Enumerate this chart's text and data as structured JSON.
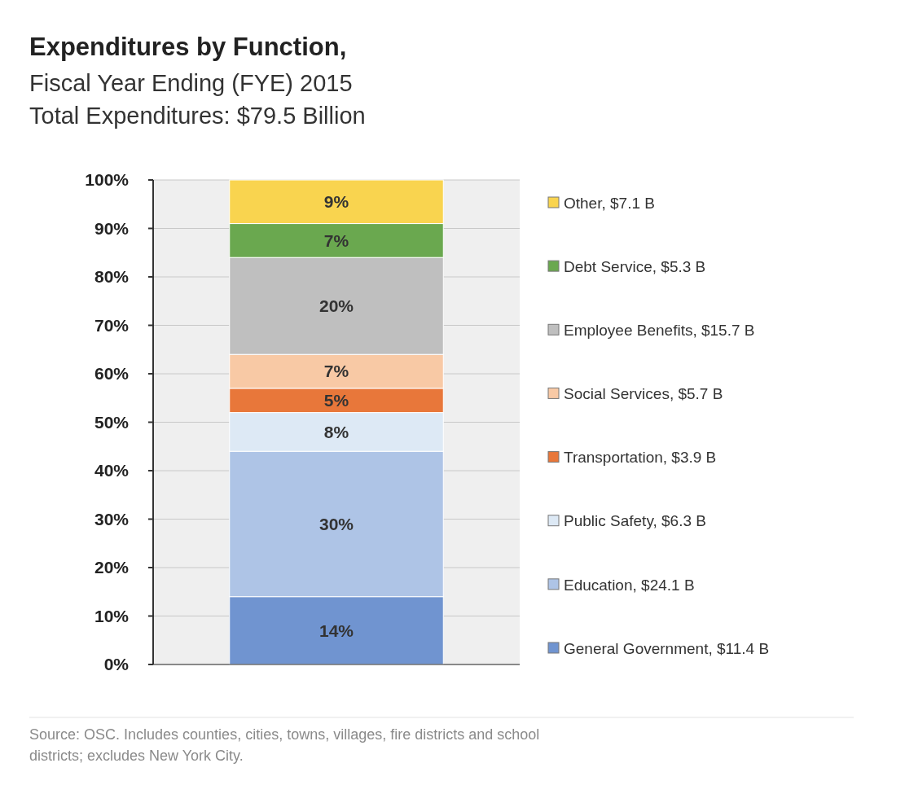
{
  "chart_data": {
    "type": "bar",
    "stacked": true,
    "title": "Expenditures by Function,",
    "subtitle": "Fiscal Year Ending (FYE) 2015\nTotal Expenditures: $79.5 Billion",
    "categories": [
      null
    ],
    "series": [
      {
        "name": "General Government, $11.4 B",
        "color": "#7094d0",
        "values": [
          14
        ],
        "value_labels": [
          "14%"
        ]
      },
      {
        "name": "Education, $24.1 B",
        "color": "#aec4e6",
        "values": [
          30
        ],
        "value_labels": [
          "30%"
        ]
      },
      {
        "name": "Public Safety, $6.3 B",
        "color": "#dde9f5",
        "values": [
          8
        ],
        "value_labels": [
          "8%"
        ]
      },
      {
        "name": "Transportation, $3.9 B",
        "color": "#e8773a",
        "values": [
          5
        ],
        "value_labels": [
          "5%"
        ]
      },
      {
        "name": "Social Services, $5.7 B",
        "color": "#f8c9a5",
        "values": [
          7
        ],
        "value_labels": [
          "7%"
        ]
      },
      {
        "name": "Employee Benefits, $15.7 B",
        "color": "#bfbfbf",
        "values": [
          20
        ],
        "value_labels": [
          "20%"
        ]
      },
      {
        "name": "Debt Service, $5.3 B",
        "color": "#6aa84f",
        "values": [
          7
        ],
        "value_labels": [
          "7%"
        ]
      },
      {
        "name": "Other, $7.1 B",
        "color": "#f9d44f",
        "values": [
          9
        ],
        "value_labels": [
          "9%"
        ]
      }
    ],
    "ylim": [
      0,
      100
    ],
    "yticks": [
      {
        "value": 0,
        "label": "0%"
      },
      {
        "value": 10,
        "label": "10%"
      },
      {
        "value": 20,
        "label": "20%"
      },
      {
        "value": 30,
        "label": "30%"
      },
      {
        "value": 40,
        "label": "40%"
      },
      {
        "value": 50,
        "label": "50%"
      },
      {
        "value": 60,
        "label": "60%"
      },
      {
        "value": 70,
        "label": "70%"
      },
      {
        "value": 80,
        "label": "80%"
      },
      {
        "value": 90,
        "label": "90%"
      },
      {
        "value": 100,
        "label": "100%"
      }
    ],
    "grid": "y",
    "legend": "right",
    "annotations": [
      "Source: OSC. Includes counties, cities, towns, villages, fire districts and school districts; excludes New York City."
    ]
  }
}
